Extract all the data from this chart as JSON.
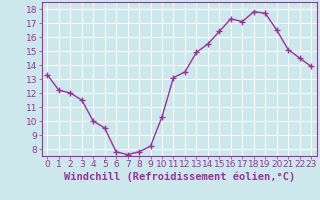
{
  "x": [
    0,
    1,
    2,
    3,
    4,
    5,
    6,
    7,
    8,
    9,
    10,
    11,
    12,
    13,
    14,
    15,
    16,
    17,
    18,
    19,
    20,
    21,
    22,
    23
  ],
  "y": [
    13.3,
    12.2,
    12.0,
    11.5,
    10.0,
    9.5,
    7.8,
    7.6,
    7.8,
    8.2,
    10.3,
    13.1,
    13.5,
    14.9,
    15.5,
    16.4,
    17.3,
    17.1,
    17.8,
    17.7,
    16.5,
    15.1,
    14.5,
    13.9
  ],
  "line_color": "#993399",
  "marker": "+",
  "bg_color": "#cce8ec",
  "grid_color": "#ffffff",
  "xlabel": "Windchill (Refroidissement éolien,°C)",
  "ylim": [
    7.5,
    18.5
  ],
  "xlim": [
    -0.5,
    23.5
  ],
  "yticks": [
    8,
    9,
    10,
    11,
    12,
    13,
    14,
    15,
    16,
    17,
    18
  ],
  "xticks": [
    0,
    1,
    2,
    3,
    4,
    5,
    6,
    7,
    8,
    9,
    10,
    11,
    12,
    13,
    14,
    15,
    16,
    17,
    18,
    19,
    20,
    21,
    22,
    23
  ],
  "tick_fontsize": 6.5,
  "xlabel_fontsize": 7.5,
  "linewidth": 1.0,
  "markersize": 4
}
